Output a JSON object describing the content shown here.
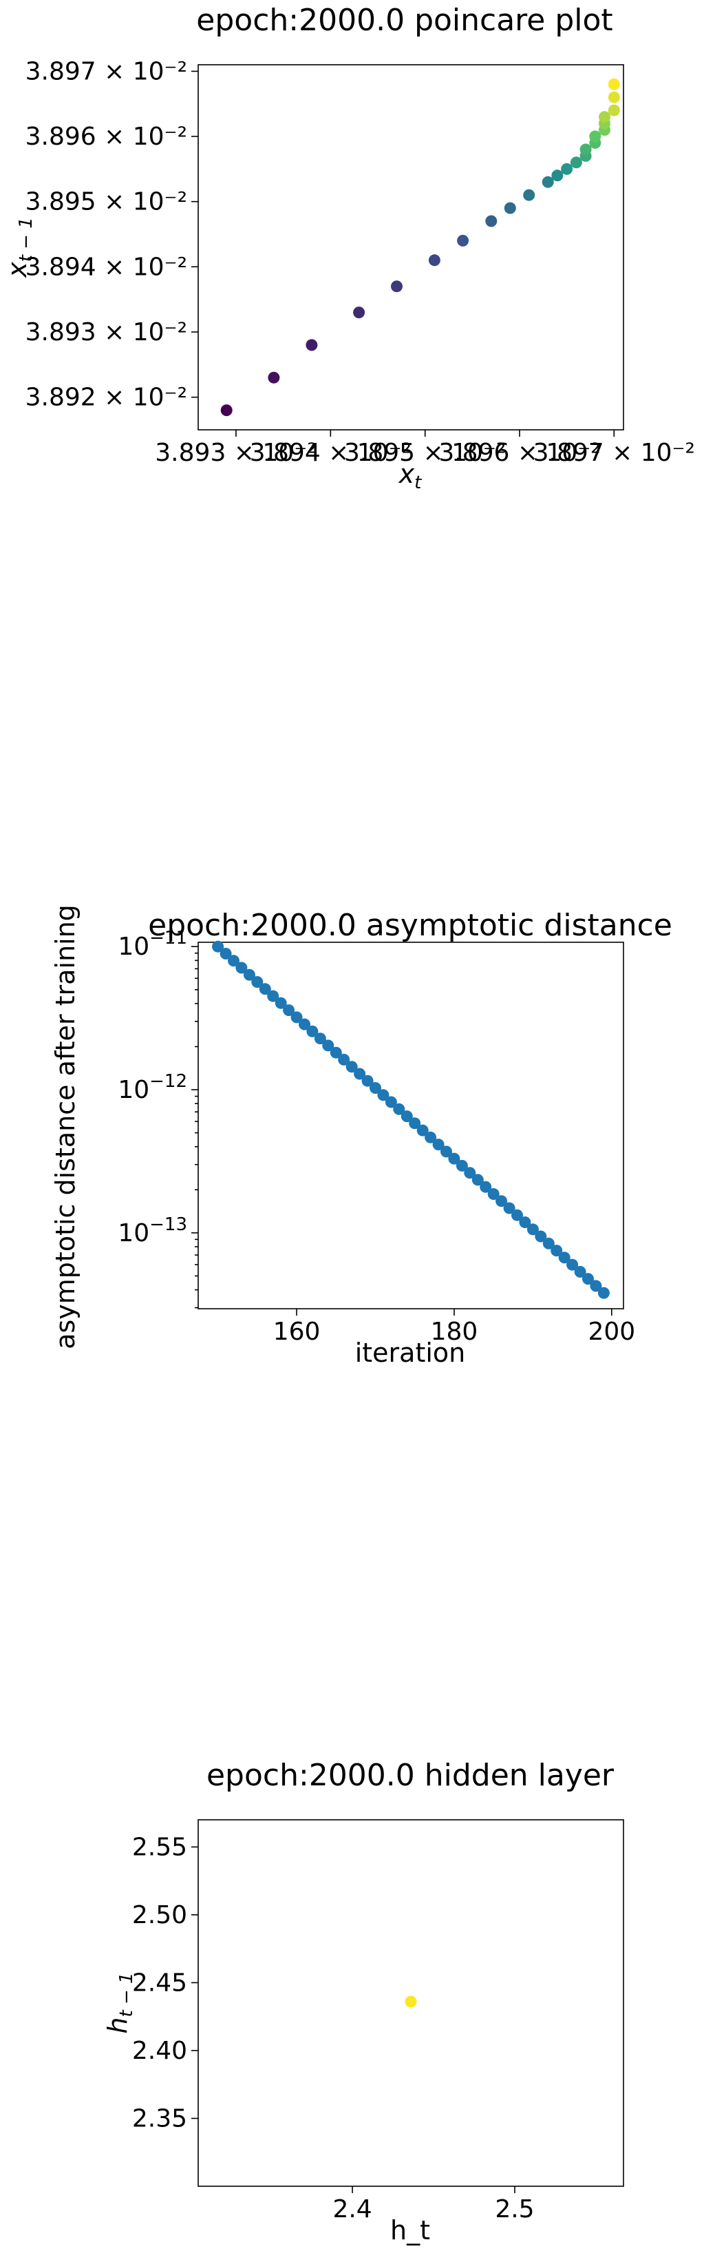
{
  "chart_data": [
    {
      "type": "scatter",
      "title": "epoch:2000.0 poincare plot",
      "xlabel": "x_t",
      "ylabel": "x_{t-1}",
      "scale": "log",
      "xlim": [
        0.038926,
        0.038971
      ],
      "ylim": [
        0.038915,
        0.038971
      ],
      "xticks": [
        0.03893,
        0.03894,
        0.03895,
        0.03896,
        0.03897
      ],
      "xtick_labels": [
        "3.893 × 10⁻²",
        "3.894 × 10⁻²",
        "3.895 × 10⁻²",
        "3.896 × 10⁻²",
        "3.897 × 10⁻²"
      ],
      "yticks": [
        0.03892,
        0.03893,
        0.03894,
        0.03895,
        0.03896,
        0.03897
      ],
      "ytick_labels": [
        "3.892 × 10⁻²",
        "3.893 × 10⁻²",
        "3.894 × 10⁻²",
        "3.895 × 10⁻²",
        "3.896 × 10⁻²",
        "3.897 × 10⁻²"
      ],
      "colormap": "viridis",
      "x": [
        0.038929,
        0.038934,
        0.038938,
        0.038943,
        0.038947,
        0.038951,
        0.038954,
        0.038957,
        0.038959,
        0.038961,
        0.038963,
        0.038964,
        0.038965,
        0.038966,
        0.038967,
        0.038967,
        0.038968,
        0.038968,
        0.038969,
        0.038969,
        0.038969,
        0.03897,
        0.03897,
        0.03897
      ],
      "y": [
        0.038918,
        0.038923,
        0.038928,
        0.038933,
        0.038937,
        0.038941,
        0.038944,
        0.038947,
        0.038949,
        0.038951,
        0.038953,
        0.038954,
        0.038955,
        0.038956,
        0.038957,
        0.038958,
        0.038959,
        0.03896,
        0.038961,
        0.038962,
        0.038963,
        0.038964,
        0.038966,
        0.038968
      ]
    },
    {
      "type": "scatter",
      "title": "epoch:2000.0 asymptotic distance",
      "xlabel": "iteration",
      "ylabel": "asymptotic distance after training",
      "y_scale": "log",
      "xlim": [
        147.5,
        201.5
      ],
      "ylim_log10": [
        -13.53,
        -10.97
      ],
      "xticks": [
        160,
        180,
        200
      ],
      "xtick_labels": [
        "160",
        "180",
        "200"
      ],
      "ytick_exponents": [
        -11,
        -12,
        -13
      ],
      "ytick_base": "10",
      "color": "#1f77b4",
      "x_start": 150,
      "x_end": 199,
      "y_log10_start": -11.0,
      "y_log10_end": -13.42
    },
    {
      "type": "scatter",
      "title": "epoch:2000.0 hidden layer",
      "xlabel": "h_t",
      "ylabel": "h_{t-1}",
      "xlim": [
        2.305,
        2.567
      ],
      "ylim": [
        2.3,
        2.57
      ],
      "xticks": [
        2.4,
        2.5
      ],
      "xtick_labels": [
        "2.4",
        "2.5"
      ],
      "yticks": [
        2.35,
        2.4,
        2.45,
        2.5,
        2.55
      ],
      "ytick_labels": [
        "2.35",
        "2.40",
        "2.45",
        "2.50",
        "2.55"
      ],
      "color": "#fde725",
      "x": [
        2.436
      ],
      "y": [
        2.436
      ]
    }
  ]
}
